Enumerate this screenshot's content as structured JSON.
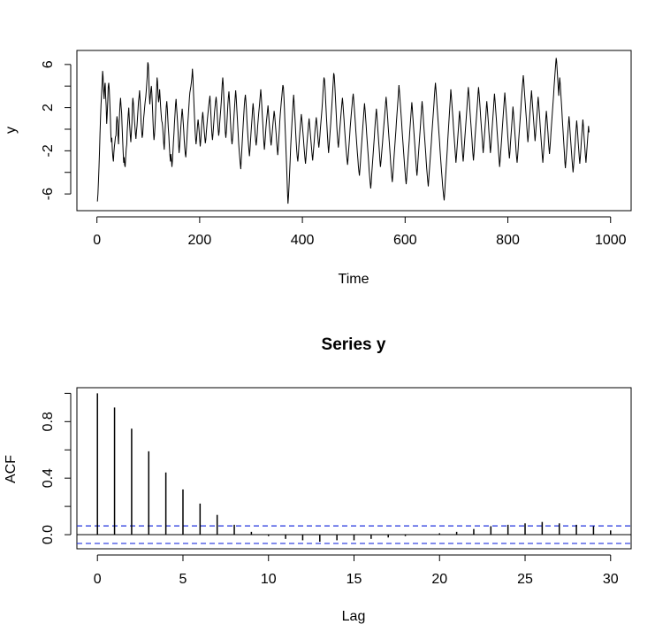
{
  "chart_data": [
    {
      "type": "line",
      "title": "",
      "xlabel": "Time",
      "ylabel": "y",
      "xlim": [
        0,
        1000
      ],
      "ylim": [
        -7,
        6.8
      ],
      "x_ticks": [
        0,
        200,
        400,
        600,
        800,
        1000
      ],
      "y_ticks": [
        -6,
        -2,
        2,
        6
      ],
      "y_minor_ticks": [
        -4,
        0,
        4
      ],
      "series": [
        {
          "x_start": 1,
          "x_step": 1,
          "values": [
            -6.7,
            -6.0,
            -4.8,
            -3.5,
            -2.0,
            -0.5,
            1.0,
            2.3,
            3.2,
            4.2,
            5.4,
            4.9,
            3.6,
            2.8,
            3.9,
            4.3,
            3.1,
            2.2,
            0.5,
            1.4,
            2.6,
            3.9,
            4.3,
            3.7,
            2.5,
            1.2,
            -0.4,
            -1.2,
            -0.8,
            -1.9,
            -2.6,
            -3.0,
            -2.2,
            -1.6,
            -1.2,
            -0.7,
            -0.6,
            0.5,
            1.2,
            0.8,
            -0.6,
            -1.4,
            0.2,
            1.3,
            2.3,
            2.9,
            2.1,
            1.5,
            0.3,
            -0.9,
            -2.1,
            -3.1,
            -2.6,
            -3.3,
            -3.5,
            -2.6,
            -1.8,
            -1.4,
            -0.2,
            0.6,
            1.4,
            2.0,
            0.9,
            0.1,
            -0.6,
            -1.2,
            -0.3,
            0.5,
            2.2,
            2.9,
            2.4,
            1.6,
            0.8,
            0.2,
            -0.4,
            -0.9,
            -0.2,
            0.3,
            1.1,
            1.9,
            2.6,
            3.0,
            3.6,
            2.7,
            1.7,
            0.6,
            -0.1,
            -0.8,
            -0.5,
            0.3,
            1.0,
            1.5,
            2.1,
            2.6,
            3.0,
            3.5,
            4.2,
            5.0,
            6.2,
            6.0,
            4.6,
            3.2,
            2.3,
            3.0,
            3.6,
            4.0,
            3.3,
            2.2,
            0.9,
            -0.3,
            -1.0,
            -0.6,
            0.2,
            1.3,
            2.6,
            3.6,
            4.8,
            4.4,
            3.3,
            2.5,
            2.9,
            3.7,
            3.0,
            2.1,
            1.4,
            0.8,
            0.6,
            0.2,
            -0.5,
            -1.3,
            -1.9,
            -0.8,
            0.1,
            1.1,
            2.1,
            2.6,
            1.9,
            0.9,
            0.1,
            -0.6,
            -1.6,
            -2.4,
            -3.0,
            -2.3,
            -2.8,
            -3.5,
            -2.9,
            -2.0,
            -1.2,
            -0.4,
            0.6,
            1.4,
            2.3,
            2.8,
            2.1,
            1.4,
            0.6,
            -0.3,
            -1.4,
            -2.2,
            -1.6,
            -0.9,
            0.0,
            0.7,
            1.3,
            1.9,
            1.3,
            0.6,
            -0.2,
            -1.0,
            -1.7,
            -2.3,
            -2.6,
            -1.8,
            -1.0,
            -0.2,
            0.6,
            1.3,
            2.1,
            2.9,
            3.4,
            3.7,
            4.0,
            4.4,
            4.9,
            5.6,
            4.8,
            3.4,
            2.2,
            1.0,
            -0.1,
            -0.8,
            -1.4,
            -0.9,
            -0.2,
            0.5,
            0.9,
            0.4,
            -0.2,
            -0.9,
            -1.6,
            -1.2,
            -0.4,
            0.4,
            1.1,
            1.6,
            1.1,
            0.5,
            -0.2,
            -0.8,
            -1.3,
            -0.9,
            -0.3,
            0.3,
            0.9,
            1.4,
            1.9,
            2.3,
            2.7,
            3.1,
            2.2,
            1.2,
            0.3,
            -0.5,
            -1.0,
            -0.4,
            0.3,
            1.0,
            1.6,
            2.1,
            2.6,
            3.0,
            2.4,
            1.6,
            0.7,
            0.0,
            -0.6,
            -0.2,
            0.5,
            1.2,
            1.8,
            2.5,
            3.4,
            4.2,
            4.8,
            4.1,
            2.9,
            1.7,
            0.6,
            -0.3,
            -0.8,
            -0.2,
            0.6,
            1.5,
            2.3,
            3.0,
            3.5,
            2.7,
            1.7,
            0.7,
            -0.2,
            -0.9,
            -1.4,
            -0.9,
            -0.3,
            0.5,
            1.3,
            2.1,
            2.9,
            3.6,
            3.1,
            2.2,
            1.3,
            0.4,
            -0.5,
            -1.3,
            -2.0,
            -2.6,
            -3.2,
            -3.7,
            -2.9,
            -2.0,
            -1.1,
            -0.2,
            0.7,
            1.5,
            2.2,
            2.8,
            3.2,
            2.6,
            1.8,
            0.9,
            0.1,
            -0.7,
            -1.4,
            -2.0,
            -2.5,
            -1.9,
            -1.1,
            -0.3,
            0.4,
            1.1,
            1.8,
            2.4,
            1.8,
            1.0,
            0.3,
            -0.4,
            -1.0,
            -1.5,
            -1.0,
            -0.4,
            0.3,
            0.9,
            1.5,
            2.0,
            2.6,
            3.2,
            3.7,
            3.0,
            2.1,
            1.2,
            0.4,
            -0.4,
            -1.2,
            -1.9,
            -1.3,
            -0.6,
            0.1,
            0.7,
            1.2,
            1.7,
            2.2,
            1.6,
            0.9,
            0.2,
            -0.4,
            -1.0,
            -1.5,
            -1.1,
            -0.5,
            0.1,
            0.7,
            1.2,
            1.7,
            1.3,
            0.7,
            0.1,
            -0.5,
            -1.2,
            -1.8,
            -2.4,
            -1.7,
            -0.9,
            -0.1,
            0.7,
            1.4,
            2.0,
            2.6,
            3.1,
            3.6,
            4.1,
            3.9,
            3.0,
            1.9,
            0.7,
            -0.5,
            -1.8,
            -3.1,
            -4.5,
            -5.8,
            -6.9,
            -6.2,
            -5.2,
            -4.1,
            -3.0,
            -1.9,
            -0.9,
            0.0,
            0.9,
            1.7,
            2.5,
            3.2,
            2.4,
            1.5,
            0.6,
            -0.3,
            -1.2,
            -2.0,
            -2.6,
            -3.0,
            -2.4,
            -1.7,
            -1.0,
            -0.3,
            0.3,
            0.9,
            1.4,
            0.9,
            0.3,
            -0.3,
            -0.9,
            -1.5,
            -2.1,
            -2.7,
            -3.2,
            -2.6,
            -2.0,
            -1.3,
            -0.7,
            -0.1,
            0.5,
            1.0,
            0.5,
            -0.1,
            -0.7,
            -1.3,
            -1.9,
            -2.4,
            -2.9,
            -2.3,
            -1.7,
            -1.1,
            -0.5,
            0.1,
            0.6,
            1.1,
            0.6,
            0.0,
            -0.6,
            -1.2,
            -1.7,
            -1.2,
            -0.6,
            0.0,
            0.6,
            1.2,
            1.8,
            2.5,
            3.3,
            4.1,
            4.8,
            4.6,
            3.9,
            3.0,
            2.0,
            1.0,
            0.1,
            -0.8,
            -1.6,
            -2.2,
            -1.6,
            -0.9,
            -0.2,
            0.5,
            1.2,
            1.9,
            2.7,
            3.6,
            4.4,
            5.2,
            5.0,
            4.2,
            3.2,
            2.2,
            1.2,
            0.3,
            -0.5,
            -1.2,
            -1.7,
            -1.1,
            -0.5,
            0.1,
            0.7,
            1.3,
            1.9,
            2.4,
            2.9,
            2.3,
            1.6,
            0.9,
            0.2,
            -0.5,
            -1.2,
            -1.8,
            -2.4,
            -2.9,
            -3.3,
            -2.7,
            -2.0,
            -1.3,
            -0.6,
            0.1,
            0.7,
            1.3,
            1.9,
            2.4,
            2.9,
            3.3,
            2.7,
            2.0,
            1.3,
            0.6,
            -0.1,
            -0.8,
            -1.5,
            -2.2,
            -2.8,
            -3.4,
            -3.9,
            -4.3,
            -3.7,
            -3.0,
            -2.3,
            -1.6,
            -0.9,
            -0.2,
            0.5,
            1.2,
            1.8,
            2.4,
            1.8,
            1.1,
            0.4,
            -0.3,
            -1.0,
            -1.7,
            -2.4,
            -3.1,
            -3.8,
            -4.4,
            -5.0,
            -5.5,
            -4.9,
            -4.2,
            -3.5,
            -2.8,
            -2.1,
            -1.4,
            -0.7,
            0.0,
            0.7,
            1.3,
            1.9,
            1.3,
            0.6,
            -0.1,
            -0.8,
            -1.5,
            -2.2,
            -2.9,
            -3.5,
            -3.0,
            -2.4,
            -1.8,
            -1.2,
            -0.6,
            0.0,
            0.6,
            1.2,
            1.8,
            2.4,
            3.0,
            2.4,
            1.7,
            1.0,
            0.3,
            -0.4,
            -1.1,
            -1.8,
            -2.5,
            -3.2,
            -3.8,
            -4.4,
            -4.9,
            -4.3,
            -3.6,
            -2.9,
            -2.2,
            -1.5,
            -0.8,
            -0.1,
            0.6,
            1.3,
            2.0,
            2.7,
            3.4,
            4.1,
            3.5,
            2.8,
            2.1,
            1.4,
            0.7,
            0.0,
            -0.7,
            -1.4,
            -2.1,
            -2.8,
            -3.4,
            -4.0,
            -4.6,
            -5.1,
            -4.5,
            -3.8,
            -3.1,
            -2.4,
            -1.7,
            -1.0,
            -0.3,
            0.4,
            1.1,
            1.8,
            2.5,
            1.9,
            1.2,
            0.5,
            -0.2,
            -0.9,
            -1.6,
            -2.3,
            -3.0,
            -3.7,
            -4.3,
            -3.7,
            -3.0,
            -2.3,
            -1.6,
            -0.9,
            -0.2,
            0.5,
            1.2,
            1.9,
            2.6,
            2.0,
            1.3,
            0.6,
            -0.1,
            -0.8,
            -1.5,
            -2.2,
            -2.9,
            -3.6,
            -4.2,
            -4.8,
            -5.3,
            -4.7,
            -4.0,
            -3.3,
            -2.6,
            -1.9,
            -1.2,
            -0.5,
            0.2,
            0.9,
            1.6,
            2.3,
            3.0,
            3.7,
            4.3,
            3.7,
            3.0,
            2.3,
            1.6,
            0.9,
            0.2,
            -0.5,
            -1.2,
            -1.9,
            -2.6,
            -3.3,
            -4.0,
            -4.6,
            -5.2,
            -5.7,
            -6.2,
            -6.6,
            -5.9,
            -5.1,
            -4.3,
            -3.5,
            -2.7,
            -1.9,
            -1.1,
            -0.3,
            0.5,
            1.3,
            2.1,
            2.9,
            3.7,
            3.1,
            2.4,
            1.7,
            1.0,
            0.3,
            -0.4,
            -1.1,
            -1.8,
            -2.5,
            -3.1,
            -2.5,
            -1.8,
            -1.1,
            -0.4,
            0.3,
            1.0,
            1.7,
            1.1,
            0.4,
            -0.3,
            -1.0,
            -1.7,
            -2.4,
            -3.0,
            -2.4,
            -1.7,
            -1.0,
            -0.3,
            0.4,
            1.1,
            1.8,
            2.5,
            3.2,
            3.9,
            3.3,
            2.6,
            1.9,
            1.2,
            0.5,
            -0.2,
            -0.9,
            -1.6,
            -2.3,
            -2.9,
            -2.3,
            -1.6,
            -0.9,
            -0.2,
            0.5,
            1.2,
            1.9,
            2.6,
            3.3,
            3.9,
            3.3,
            2.6,
            1.9,
            1.2,
            0.5,
            -0.2,
            -0.9,
            -1.6,
            -2.2,
            -1.6,
            -0.9,
            -0.2,
            0.5,
            1.2,
            1.9,
            2.6,
            2.0,
            1.3,
            0.6,
            -0.1,
            -0.8,
            -1.5,
            -2.2,
            -1.6,
            -0.9,
            -0.2,
            0.5,
            1.2,
            1.9,
            2.6,
            3.3,
            2.7,
            2.0,
            1.3,
            0.6,
            -0.1,
            -0.8,
            -1.5,
            -2.2,
            -2.9,
            -3.5,
            -2.9,
            -2.2,
            -1.5,
            -0.8,
            -0.1,
            0.6,
            1.3,
            2.0,
            2.7,
            3.4,
            2.8,
            2.1,
            1.4,
            0.7,
            0.0,
            -0.7,
            -1.4,
            -2.1,
            -2.7,
            -2.1,
            -1.4,
            -0.7,
            0.0,
            0.7,
            1.4,
            2.1,
            1.5,
            0.8,
            0.1,
            -0.6,
            -1.3,
            -2.0,
            -2.6,
            -3.1,
            -2.5,
            -1.8,
            -1.1,
            -0.4,
            0.3,
            1.0,
            1.7,
            2.4,
            3.1,
            3.8,
            4.4,
            5.0,
            4.4,
            3.7,
            3.0,
            2.3,
            1.6,
            0.9,
            0.2,
            -0.5,
            -1.2,
            -0.6,
            0.1,
            0.8,
            1.5,
            2.2,
            2.9,
            3.6,
            3.0,
            2.3,
            1.6,
            0.9,
            0.2,
            -0.5,
            -1.1,
            -0.5,
            0.2,
            0.9,
            1.6,
            2.3,
            3.0,
            2.4,
            1.7,
            1.0,
            0.3,
            -0.4,
            -1.1,
            -1.8,
            -2.5,
            -3.1,
            -2.5,
            -1.8,
            -1.1,
            -0.4,
            0.3,
            1.0,
            1.7,
            1.1,
            0.4,
            -0.3,
            -1.0,
            -1.7,
            -2.3,
            -1.7,
            -1.0,
            -0.3,
            0.4,
            1.1,
            1.8,
            2.5,
            3.2,
            3.9,
            4.6,
            5.3,
            6.0,
            6.6,
            6.3,
            5.5,
            4.7,
            3.9,
            3.1,
            4.0,
            4.8,
            4.2,
            3.4,
            2.6,
            1.8,
            1.0,
            0.2,
            -0.6,
            -1.4,
            -2.2,
            -3.0,
            -3.6,
            -3.0,
            -2.3,
            -1.6,
            -0.9,
            -0.2,
            0.5,
            1.2,
            0.6,
            -0.1,
            -0.8,
            -1.5,
            -2.2,
            -2.9,
            -3.5,
            -4.0,
            -3.4,
            -2.7,
            -2.0,
            -1.3,
            -0.6,
            0.1,
            0.8,
            0.2,
            -0.5,
            -1.2,
            -1.9,
            -2.6,
            -3.2,
            -2.6,
            -1.9,
            -1.2,
            -0.5,
            0.2,
            0.9,
            0.3,
            -0.4,
            -1.1,
            -1.8,
            -2.5,
            -3.1,
            -2.5,
            -1.8,
            -1.1,
            -0.4,
            0.3,
            -0.3
          ]
        }
      ]
    },
    {
      "type": "bar",
      "title": "Series  y",
      "xlabel": "Lag",
      "ylabel": "ACF",
      "xlim": [
        0,
        30
      ],
      "ylim": [
        -0.06,
        1.0
      ],
      "x_ticks": [
        0,
        5,
        10,
        15,
        20,
        25,
        30
      ],
      "y_ticks": [
        0.0,
        0.4,
        0.8
      ],
      "y_minor_ticks": [
        0.2,
        0.6,
        1.0
      ],
      "confidence_band": 0.062,
      "lags": [
        0,
        1,
        2,
        3,
        4,
        5,
        6,
        7,
        8,
        9,
        10,
        11,
        12,
        13,
        14,
        15,
        16,
        17,
        18,
        19,
        20,
        21,
        22,
        23,
        24,
        25,
        26,
        27,
        28,
        29,
        30
      ],
      "values": [
        1.0,
        0.9,
        0.75,
        0.59,
        0.44,
        0.32,
        0.22,
        0.14,
        0.07,
        0.02,
        -0.01,
        -0.03,
        -0.04,
        -0.05,
        -0.04,
        -0.04,
        -0.03,
        -0.02,
        -0.01,
        0.0,
        0.01,
        0.02,
        0.04,
        0.06,
        0.07,
        0.08,
        0.09,
        0.08,
        0.07,
        0.06,
        0.03
      ]
    }
  ]
}
